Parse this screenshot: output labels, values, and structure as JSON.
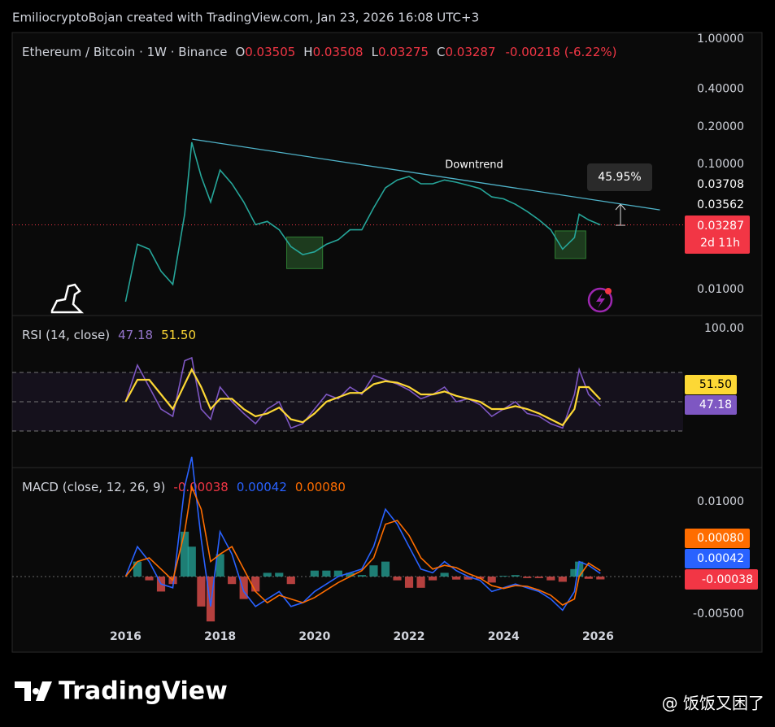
{
  "header": {
    "credit": "EmiliocryptoBojan created with TradingView.com, Jan 23, 2026 16:08 UTC+3"
  },
  "footer": {
    "brand": "TradingView",
    "watermark": "@ 饭饭又困了"
  },
  "chart_data": [
    {
      "type": "line",
      "title": "Ethereum / Bitcoin · 1W · Binance",
      "log": true,
      "ohlc": [
        {
          "label": "O",
          "value": "0.03505"
        },
        {
          "label": "H",
          "value": "0.03508"
        },
        {
          "label": "L",
          "value": "0.03275"
        },
        {
          "label": "C",
          "value": "0.03287"
        }
      ],
      "change": "-0.00218 (-6.22%)",
      "x": [
        2016.0,
        2016.25,
        2016.5,
        2016.75,
        2017.0,
        2017.25,
        2017.4,
        2017.6,
        2017.8,
        2018.0,
        2018.25,
        2018.5,
        2018.75,
        2019.0,
        2019.25,
        2019.5,
        2019.75,
        2020.0,
        2020.25,
        2020.5,
        2020.75,
        2021.0,
        2021.25,
        2021.5,
        2021.75,
        2022.0,
        2022.25,
        2022.5,
        2022.75,
        2023.0,
        2023.25,
        2023.5,
        2023.75,
        2024.0,
        2024.25,
        2024.5,
        2024.75,
        2025.0,
        2025.25,
        2025.5,
        2025.6,
        2025.8,
        2026.05
      ],
      "values": [
        0.008,
        0.023,
        0.021,
        0.014,
        0.011,
        0.04,
        0.15,
        0.08,
        0.05,
        0.09,
        0.07,
        0.05,
        0.033,
        0.035,
        0.03,
        0.022,
        0.019,
        0.02,
        0.023,
        0.025,
        0.03,
        0.03,
        0.045,
        0.065,
        0.075,
        0.08,
        0.07,
        0.07,
        0.075,
        0.072,
        0.068,
        0.064,
        0.055,
        0.053,
        0.048,
        0.042,
        0.036,
        0.03,
        0.021,
        0.026,
        0.04,
        0.036,
        0.03287
      ],
      "color": "#26a69a",
      "xlim": [
        2013.6,
        2027.8
      ],
      "ylim": [
        0.0062,
        1.13
      ],
      "yticks": [
        {
          "value": 1,
          "label": "1.00000"
        },
        {
          "value": 0.4,
          "label": "0.40000"
        },
        {
          "value": 0.2,
          "label": "0.20000"
        },
        {
          "value": 0.1,
          "label": "0.10000"
        },
        {
          "value": 0.01,
          "label": "0.01000"
        }
      ],
      "tags": [
        "0.03708",
        "0.03562"
      ],
      "price_tag": "0.03287",
      "countdown": "2d 11h",
      "trendline": {
        "x": [
          2017.41,
          2027.31
        ],
        "values": [
          0.159,
          0.0433
        ],
        "color": "#4fb3c9",
        "label": "Downtrend"
      },
      "zones": [
        {
          "x": [
            2019.41,
            2020.17
          ],
          "values": [
            0.0263,
            0.0147
          ]
        },
        {
          "x": [
            2025.09,
            2025.74
          ],
          "values": [
            0.0294,
            0.0177
          ]
        }
      ],
      "measure": "45.95%"
    },
    {
      "type": "line",
      "title": "RSI (14, close)",
      "legend_values": [
        "47.18",
        "51.50"
      ],
      "x": [
        2016.0,
        2016.25,
        2016.5,
        2016.75,
        2017.0,
        2017.25,
        2017.4,
        2017.6,
        2017.8,
        2018.0,
        2018.25,
        2018.5,
        2018.75,
        2019.0,
        2019.25,
        2019.5,
        2019.75,
        2020.0,
        2020.25,
        2020.5,
        2020.75,
        2021.0,
        2021.25,
        2021.5,
        2021.75,
        2022.0,
        2022.25,
        2022.5,
        2022.75,
        2023.0,
        2023.25,
        2023.5,
        2023.75,
        2024.0,
        2024.25,
        2024.5,
        2024.75,
        2025.0,
        2025.25,
        2025.5,
        2025.6,
        2025.8,
        2026.05
      ],
      "series": [
        {
          "color": "#7e57c2",
          "values": [
            50,
            75,
            60,
            45,
            40,
            78,
            80,
            45,
            38,
            60,
            50,
            42,
            35,
            45,
            50,
            32,
            35,
            45,
            55,
            52,
            60,
            55,
            68,
            65,
            62,
            58,
            52,
            55,
            60,
            50,
            52,
            48,
            40,
            45,
            50,
            42,
            40,
            35,
            32,
            55,
            72,
            55,
            47.18
          ]
        },
        {
          "color": "#fdd835",
          "values": [
            50,
            65,
            65,
            55,
            45,
            62,
            72,
            60,
            45,
            52,
            52,
            45,
            40,
            42,
            46,
            38,
            36,
            42,
            50,
            53,
            56,
            56,
            62,
            64,
            63,
            60,
            55,
            55,
            57,
            54,
            52,
            50,
            45,
            45,
            47,
            45,
            42,
            38,
            34,
            45,
            60,
            60,
            51.5
          ]
        }
      ],
      "levels": [
        30,
        50,
        70
      ],
      "xlim": [
        2013.6,
        2027.8
      ],
      "ylim": [
        5,
        108.9
      ],
      "yticks": [
        {
          "value": 100,
          "label": "100.00"
        }
      ]
    },
    {
      "type": "macd",
      "title": "MACD (close, 12, 26, 9)",
      "legend_values": [
        "-0.00038",
        "0.00042",
        "0.00080"
      ],
      "x": [
        2016.0,
        2016.25,
        2016.5,
        2016.75,
        2017.0,
        2017.25,
        2017.4,
        2017.6,
        2017.8,
        2018.0,
        2018.25,
        2018.5,
        2018.75,
        2019.0,
        2019.25,
        2019.5,
        2019.75,
        2020.0,
        2020.25,
        2020.5,
        2020.75,
        2021.0,
        2021.25,
        2021.5,
        2021.75,
        2022.0,
        2022.25,
        2022.5,
        2022.75,
        2023.0,
        2023.25,
        2023.5,
        2023.75,
        2024.0,
        2024.25,
        2024.5,
        2024.75,
        2025.0,
        2025.25,
        2025.5,
        2025.6,
        2025.8,
        2026.05
      ],
      "histogram": [
        0,
        0.002,
        -0.0005,
        -0.002,
        -0.001,
        0.006,
        0.004,
        -0.004,
        -0.006,
        0.003,
        -0.001,
        -0.003,
        -0.002,
        0.0005,
        0.0005,
        -0.001,
        0,
        0.0008,
        0.0008,
        0.0008,
        0.0005,
        0.0002,
        0.0015,
        0.002,
        -0.0005,
        -0.0015,
        -0.0015,
        -0.0005,
        0.0005,
        -0.0004,
        -0.0004,
        -0.0003,
        -0.0008,
        0.0001,
        0.0002,
        -0.0002,
        -0.0002,
        -0.0005,
        -0.0007,
        0.001,
        0.002,
        -0.0003,
        -0.00038
      ],
      "series": [
        {
          "color": "#2962ff",
          "values": [
            0,
            0.004,
            0.002,
            -0.001,
            -0.0015,
            0.012,
            0.016,
            0.005,
            -0.004,
            0.006,
            0.003,
            -0.002,
            -0.004,
            -0.003,
            -0.002,
            -0.004,
            -0.0035,
            -0.002,
            -0.001,
            0,
            0.0005,
            0.001,
            0.004,
            0.009,
            0.007,
            0.004,
            0.001,
            0.0005,
            0.002,
            0.0008,
            0,
            -0.0005,
            -0.002,
            -0.0015,
            -0.001,
            -0.0015,
            -0.002,
            -0.003,
            -0.0045,
            -0.002,
            0.002,
            0.0015,
            0.00042
          ]
        },
        {
          "color": "#ff6d00",
          "values": [
            0,
            0.002,
            0.0025,
            0.001,
            -0.0005,
            0.006,
            0.012,
            0.009,
            0.002,
            0.003,
            0.004,
            0.001,
            -0.002,
            -0.0035,
            -0.0025,
            -0.003,
            -0.0035,
            -0.0028,
            -0.0018,
            -0.0008,
            0,
            0.0008,
            0.0025,
            0.007,
            0.0075,
            0.0055,
            0.0025,
            0.001,
            0.0015,
            0.0012,
            0.0004,
            -0.0002,
            -0.0012,
            -0.0016,
            -0.0012,
            -0.0013,
            -0.0018,
            -0.0025,
            -0.0038,
            -0.003,
            0,
            0.0018,
            0.0008
          ]
        }
      ],
      "hist_colors": [
        "#26a69a",
        "#ef5350"
      ],
      "xlim": [
        2013.6,
        2027.8
      ],
      "ylim": [
        -0.00663,
        0.01457
      ],
      "yticks": [
        {
          "value": 0.01,
          "label": "0.01000"
        },
        {
          "value": -0.005,
          "label": "-0.00500"
        }
      ],
      "xticks": [
        2016,
        2018,
        2020,
        2022,
        2024,
        2026
      ]
    }
  ]
}
